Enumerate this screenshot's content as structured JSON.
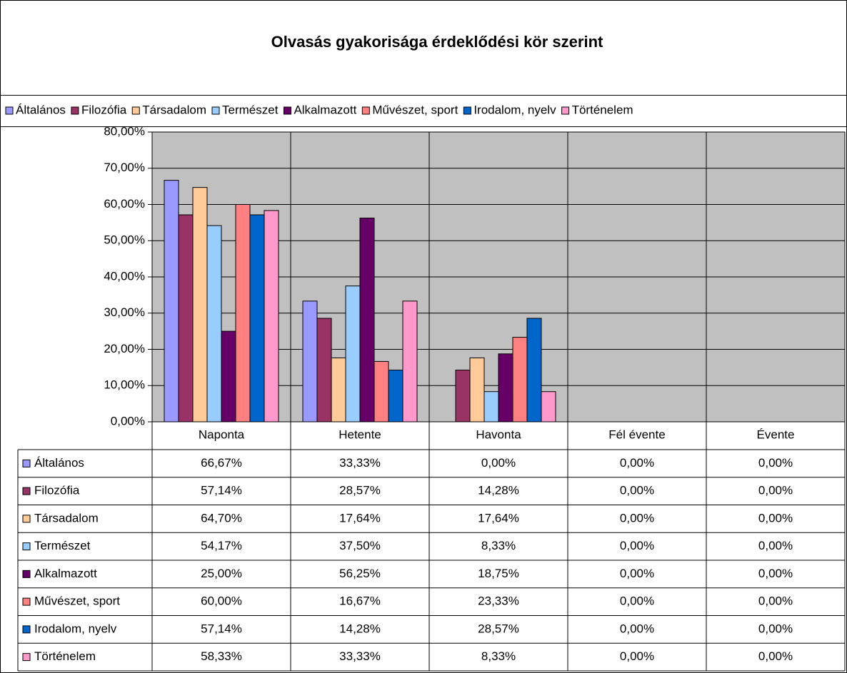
{
  "chart_data": {
    "type": "bar",
    "title": "Olvasás gyakorisága érdeklődési kör szerint",
    "categories": [
      "Naponta",
      "Hetente",
      "Havonta",
      "Fél évente",
      "Évente"
    ],
    "ylim": [
      0,
      80
    ],
    "yticks": [
      {
        "value": 0,
        "label": "0,00%"
      },
      {
        "value": 10,
        "label": "10,00%"
      },
      {
        "value": 20,
        "label": "20,00%"
      },
      {
        "value": 30,
        "label": "30,00%"
      },
      {
        "value": 40,
        "label": "40,00%"
      },
      {
        "value": 50,
        "label": "50,00%"
      },
      {
        "value": 60,
        "label": "60,00%"
      },
      {
        "value": 70,
        "label": "70,00%"
      },
      {
        "value": 80,
        "label": "80,00%"
      }
    ],
    "grid": true,
    "series": [
      {
        "name": "Általános",
        "color": "#9999ff",
        "values": [
          66.67,
          33.33,
          0,
          0,
          0
        ],
        "value_labels": [
          "66,67%",
          "33,33%",
          "0,00%",
          "0,00%",
          "0,00%"
        ]
      },
      {
        "name": "Filozófia",
        "color": "#993366",
        "values": [
          57.14,
          28.57,
          14.28,
          0,
          0
        ],
        "value_labels": [
          "57,14%",
          "28,57%",
          "14,28%",
          "0,00%",
          "0,00%"
        ]
      },
      {
        "name": "Társadalom",
        "color": "#ffcc99",
        "values": [
          64.7,
          17.64,
          17.64,
          0,
          0
        ],
        "value_labels": [
          "64,70%",
          "17,64%",
          "17,64%",
          "0,00%",
          "0,00%"
        ]
      },
      {
        "name": "Természet",
        "color": "#99ccff",
        "values": [
          54.17,
          37.5,
          8.33,
          0,
          0
        ],
        "value_labels": [
          "54,17%",
          "37,50%",
          "8,33%",
          "0,00%",
          "0,00%"
        ]
      },
      {
        "name": "Alkalmazott",
        "color": "#660066",
        "values": [
          25.0,
          56.25,
          18.75,
          0,
          0
        ],
        "value_labels": [
          "25,00%",
          "56,25%",
          "18,75%",
          "0,00%",
          "0,00%"
        ]
      },
      {
        "name": "Művészet, sport",
        "color": "#ff8080",
        "values": [
          60.0,
          16.67,
          23.33,
          0,
          0
        ],
        "value_labels": [
          "60,00%",
          "16,67%",
          "23,33%",
          "0,00%",
          "0,00%"
        ]
      },
      {
        "name": "Irodalom, nyelv",
        "color": "#0066cc",
        "values": [
          57.14,
          14.28,
          28.57,
          0,
          0
        ],
        "value_labels": [
          "57,14%",
          "14,28%",
          "28,57%",
          "0,00%",
          "0,00%"
        ]
      },
      {
        "name": "Történelem",
        "color": "#ff99cc",
        "values": [
          58.33,
          33.33,
          8.33,
          0,
          0
        ],
        "value_labels": [
          "58,33%",
          "33,33%",
          "8,33%",
          "0,00%",
          "0,00%"
        ]
      }
    ]
  }
}
